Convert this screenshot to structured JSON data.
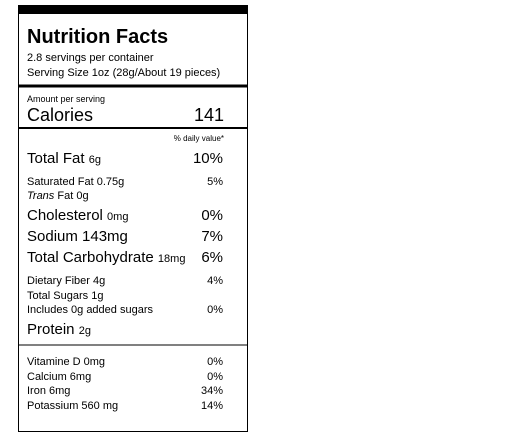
{
  "header": {
    "title": "Nutrition Facts",
    "servings": "2.8 servings per container",
    "serving_size": "Serving Size 1oz (28g/About 19 pieces)"
  },
  "calories": {
    "caption": "Amount per serving",
    "label": "Calories",
    "value": "141"
  },
  "dv_heading": "% daily value*",
  "nutrients": [
    {
      "label": "Total Fat",
      "amount": "6g",
      "dv": "10%"
    },
    {
      "label": "Saturated Fat 0.75g",
      "dv": "5%"
    },
    {
      "label": "Trans",
      "amount": "Fat 0g"
    },
    {
      "label": "Cholesterol",
      "amount": "0mg",
      "dv": "0%"
    },
    {
      "label": "Sodium 143mg",
      "dv": "7%"
    },
    {
      "label": "Total Carbohydrate",
      "amount": "18mg",
      "dv": "6%"
    },
    {
      "label": "Dietary Fiber 4g",
      "dv": "4%"
    },
    {
      "label": "Total Sugars 1g"
    },
    {
      "label": "Includes 0g added sugars",
      "dv": "0%"
    },
    {
      "label": "Protein",
      "amount": "2g"
    }
  ],
  "vitamins": [
    {
      "label": "Vitamine D 0mg",
      "dv": "0%"
    },
    {
      "label": "Calcium 6mg",
      "dv": "0%"
    },
    {
      "label": "Iron 6mg",
      "dv": "34%"
    },
    {
      "label": "Potassium 560 mg",
      "dv": "14%"
    }
  ]
}
